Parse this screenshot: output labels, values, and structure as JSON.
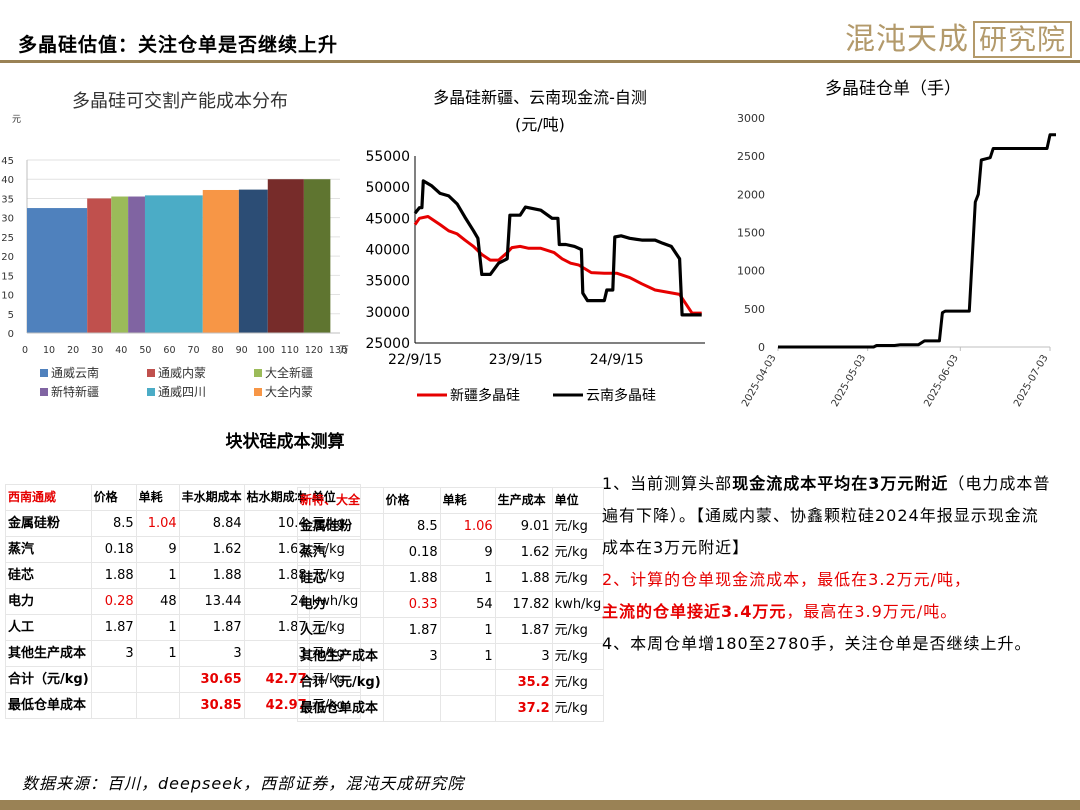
{
  "header": {
    "title": "多晶硅估值：关注仓单是否继续上升",
    "logo_text": "混沌天成",
    "logo_boxed": "研究院"
  },
  "colors": {
    "accent": "#9a8255",
    "red": "#e60000"
  },
  "charts": {
    "cost_distribution": {
      "type": "bar",
      "title": "多晶硅可交割产能成本分布",
      "ylabel": "元",
      "xunit": "万",
      "ylim": [
        0,
        45
      ],
      "yticks": [
        0,
        5,
        10,
        15,
        20,
        25,
        30,
        35,
        40,
        45
      ],
      "xlim": [
        0,
        130
      ],
      "xticks": [
        0,
        10,
        20,
        30,
        40,
        50,
        60,
        70,
        80,
        90,
        100,
        110,
        120,
        130
      ],
      "bars": [
        {
          "name": "通威云南",
          "x_start": 0,
          "x_end": 25,
          "value": 32.5,
          "color": "#4f81bd"
        },
        {
          "name": "通威内蒙",
          "x_start": 25,
          "x_end": 35,
          "value": 35,
          "color": "#c0504d"
        },
        {
          "name": "大全新疆",
          "x_start": 35,
          "x_end": 42,
          "value": 35.5,
          "color": "#9bbb59"
        },
        {
          "name": "新特新疆",
          "x_start": 42,
          "x_end": 49,
          "value": 35.5,
          "color": "#8064a2"
        },
        {
          "name": "通威四川",
          "x_start": 49,
          "x_end": 73,
          "value": 35.8,
          "color": "#4bacc6"
        },
        {
          "name": "大全内蒙",
          "x_start": 73,
          "x_end": 88,
          "value": 37.2,
          "color": "#f79646"
        },
        {
          "name": "",
          "x_start": 88,
          "x_end": 100,
          "value": 37.3,
          "color": "#2c4d75"
        },
        {
          "name": "",
          "x_start": 100,
          "x_end": 115,
          "value": 40,
          "color": "#772c2a"
        },
        {
          "name": "",
          "x_start": 115,
          "x_end": 126,
          "value": 40,
          "color": "#5f7530"
        }
      ],
      "legend": [
        {
          "name": "通威云南",
          "color": "#4f81bd"
        },
        {
          "name": "通威内蒙",
          "color": "#c0504d"
        },
        {
          "name": "大全新疆",
          "color": "#9bbb59"
        },
        {
          "name": "新特新疆",
          "color": "#8064a2"
        },
        {
          "name": "通威四川",
          "color": "#4bacc6"
        },
        {
          "name": "大全内蒙",
          "color": "#f79646"
        }
      ]
    },
    "cashflow": {
      "type": "line",
      "title": "多晶硅新疆、云南现金流-自测",
      "subtitle": "(元/吨)",
      "ylim": [
        25000,
        55000
      ],
      "yticks": [
        25000,
        30000,
        35000,
        40000,
        45000,
        50000,
        55000
      ],
      "xlim": [
        "2022-09-15",
        "2025-08-01"
      ],
      "xticks": [
        {
          "date": "2022-09-15",
          "label": "22/9/15"
        },
        {
          "date": "2023-09-15",
          "label": "23/9/15"
        },
        {
          "date": "2024-09-15",
          "label": "24/9/15"
        }
      ],
      "series": [
        {
          "name": "新疆多晶硅",
          "color": "#e60000",
          "points": [
            [
              "2022-09-15",
              44000
            ],
            [
              "2022-10-01",
              45000
            ],
            [
              "2022-11-01",
              45300
            ],
            [
              "2022-12-15",
              44000
            ],
            [
              "2023-01-15",
              43000
            ],
            [
              "2023-02-15",
              42500
            ],
            [
              "2023-03-15",
              41500
            ],
            [
              "2023-04-15",
              40500
            ],
            [
              "2023-05-15",
              39200
            ],
            [
              "2023-06-15",
              38300
            ],
            [
              "2023-07-15",
              38300
            ],
            [
              "2023-08-15",
              39500
            ],
            [
              "2023-09-01",
              40300
            ],
            [
              "2023-10-01",
              40500
            ],
            [
              "2023-11-01",
              40200
            ],
            [
              "2023-12-15",
              40200
            ],
            [
              "2024-02-01",
              39500
            ],
            [
              "2024-03-01",
              38500
            ],
            [
              "2024-04-01",
              37800
            ],
            [
              "2024-05-01",
              37500
            ],
            [
              "2024-06-15",
              36300
            ],
            [
              "2024-08-01",
              36200
            ],
            [
              "2024-09-15",
              36200
            ],
            [
              "2024-11-01",
              35500
            ],
            [
              "2024-12-15",
              34500
            ],
            [
              "2025-02-01",
              33500
            ],
            [
              "2025-05-01",
              32800
            ],
            [
              "2025-06-15",
              29800
            ],
            [
              "2025-07-20",
              29800
            ]
          ]
        },
        {
          "name": "云南多晶硅",
          "color": "#000000",
          "points": [
            [
              "2022-09-15",
              45800
            ],
            [
              "2022-10-01",
              46700
            ],
            [
              "2022-10-10",
              46700
            ],
            [
              "2022-10-15",
              51000
            ],
            [
              "2022-11-15",
              50200
            ],
            [
              "2022-12-15",
              49000
            ],
            [
              "2023-01-15",
              48600
            ],
            [
              "2023-02-15",
              47300
            ],
            [
              "2023-03-15",
              45200
            ],
            [
              "2023-04-15",
              43000
            ],
            [
              "2023-05-01",
              41800
            ],
            [
              "2023-05-15",
              36000
            ],
            [
              "2023-06-15",
              36000
            ],
            [
              "2023-07-15",
              37800
            ],
            [
              "2023-08-15",
              38500
            ],
            [
              "2023-08-25",
              45500
            ],
            [
              "2023-10-01",
              45500
            ],
            [
              "2023-10-20",
              46800
            ],
            [
              "2023-12-15",
              46300
            ],
            [
              "2024-01-25",
              45000
            ],
            [
              "2024-02-15",
              45000
            ],
            [
              "2024-02-20",
              40800
            ],
            [
              "2024-03-15",
              40800
            ],
            [
              "2024-04-15",
              40500
            ],
            [
              "2024-05-10",
              40000
            ],
            [
              "2024-05-15",
              33000
            ],
            [
              "2024-06-01",
              31800
            ],
            [
              "2024-08-01",
              31800
            ],
            [
              "2024-08-10",
              33500
            ],
            [
              "2024-09-01",
              33500
            ],
            [
              "2024-09-08",
              42000
            ],
            [
              "2024-10-01",
              42200
            ],
            [
              "2024-11-01",
              41800
            ],
            [
              "2024-12-15",
              41500
            ],
            [
              "2025-02-01",
              41500
            ],
            [
              "2025-03-01",
              41000
            ],
            [
              "2025-04-01",
              40500
            ],
            [
              "2025-05-01",
              38500
            ],
            [
              "2025-05-10",
              29500
            ],
            [
              "2025-07-20",
              29500
            ]
          ]
        }
      ]
    },
    "warehouse": {
      "type": "line",
      "title": "多晶硅仓单（手）",
      "ylim": [
        0,
        3000
      ],
      "yticks": [
        0,
        500,
        1000,
        1500,
        2000,
        2500,
        3000
      ],
      "xlim": [
        "2025-04-03",
        "2025-07-03"
      ],
      "xticks": [
        "2025-04-03",
        "2025-05-03",
        "2025-06-03",
        "2025-07-03"
      ],
      "series": [
        {
          "name": "仓单",
          "color": "#000000",
          "points": [
            [
              "2025-04-03",
              0
            ],
            [
              "2025-05-05",
              0
            ],
            [
              "2025-05-06",
              20
            ],
            [
              "2025-05-12",
              20
            ],
            [
              "2025-05-14",
              30
            ],
            [
              "2025-05-20",
              30
            ],
            [
              "2025-05-22",
              80
            ],
            [
              "2025-05-27",
              80
            ],
            [
              "2025-05-28",
              450
            ],
            [
              "2025-05-29",
              470
            ],
            [
              "2025-06-06",
              470
            ],
            [
              "2025-06-08",
              1900
            ],
            [
              "2025-06-09",
              2000
            ],
            [
              "2025-06-10",
              2450
            ],
            [
              "2025-06-13",
              2480
            ],
            [
              "2025-06-14",
              2600
            ],
            [
              "2025-06-20",
              2600
            ],
            [
              "2025-07-01",
              2600
            ],
            [
              "2025-07-02",
              2600
            ],
            [
              "2025-07-03",
              2780
            ],
            [
              "2025-07-05",
              2780
            ]
          ]
        }
      ]
    }
  },
  "table_title": "块状硅成本测算",
  "table_sw": {
    "headers": [
      "西南通威",
      "价格",
      "单耗",
      "丰水期成本",
      "枯水期成本",
      "单位"
    ],
    "rows": [
      [
        "金属硅粉",
        "8.5",
        "1.04",
        "8.84",
        "10.4",
        "元/kg"
      ],
      [
        "蒸汽",
        "0.18",
        "9",
        "1.62",
        "1.62",
        "元/kg"
      ],
      [
        "硅芯",
        "1.88",
        "1",
        "1.88",
        "1.88",
        "元/kg"
      ],
      [
        "电力",
        "0.28",
        "48",
        "13.44",
        "24",
        "kwh/kg"
      ],
      [
        "人工",
        "1.87",
        "1",
        "1.87",
        "1.87",
        "元/kg"
      ],
      [
        "其他生产成本",
        "3",
        "1",
        "3",
        "3",
        "元/kg"
      ],
      [
        "合计（元/kg)",
        "",
        "",
        "30.65",
        "42.77",
        "元/kg"
      ],
      [
        "最低仓单成本",
        "",
        "",
        "30.85",
        "42.97",
        "元/kg"
      ]
    ]
  },
  "table_xj": {
    "headers": [
      "新特、大全",
      "价格",
      "单耗",
      "生产成本",
      "单位"
    ],
    "rows": [
      [
        "金属硅粉",
        "8.5",
        "1.06",
        "9.01",
        "元/kg"
      ],
      [
        "蒸汽",
        "0.18",
        "9",
        "1.62",
        "元/kg"
      ],
      [
        "硅芯",
        "1.88",
        "1",
        "1.88",
        "元/kg"
      ],
      [
        "电力",
        "0.33",
        "54",
        "17.82",
        "kwh/kg"
      ],
      [
        "人工",
        "1.87",
        "1",
        "1.87",
        "元/kg"
      ],
      [
        "其他生产成本",
        "3",
        "1",
        "3",
        "元/kg"
      ],
      [
        "合计（元/kg)",
        "",
        "",
        "35.2",
        "元/kg"
      ],
      [
        "最低仓单成本",
        "",
        "",
        "37.2",
        "元/kg"
      ]
    ]
  },
  "notes": {
    "n1_a": "1、当前测算头部",
    "n1_b": "现金流成本平均在3万元附近",
    "n1_c": "（电力成本普遍有下降）。【通威内蒙、协鑫颗粒硅2024年报显示现金流成本在3万元附近】",
    "n2_a": "2、计算的仓单现金流成本，最低在3.2万元/吨，",
    "n2_b": "主流的仓单接近3.4万元",
    "n2_c": "，最高在3.9万元/吨。",
    "n4": "4、本周仓单增180至2780手，关注仓单是否继续上升。"
  },
  "source": "数据来源：百川，deepseek，西部证券，混沌天成研究院"
}
